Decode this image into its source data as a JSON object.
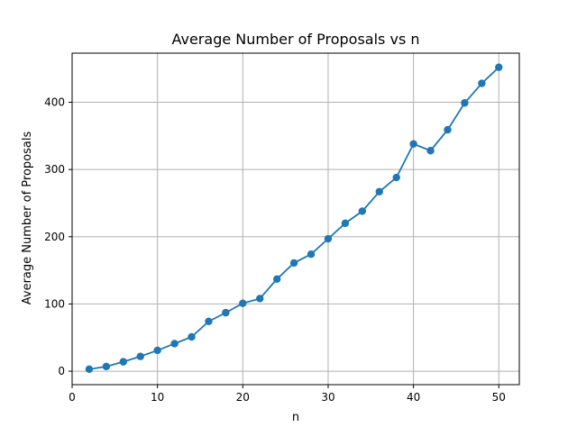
{
  "chart_data": {
    "type": "line",
    "title": "Average Number of Proposals vs n",
    "xlabel": "n",
    "ylabel": "Average Number of Proposals",
    "xlim": [
      0,
      52.4
    ],
    "ylim": [
      -20,
      473
    ],
    "x_ticks": [
      0,
      10,
      20,
      30,
      40,
      50
    ],
    "y_ticks": [
      0,
      100,
      200,
      300,
      400
    ],
    "grid": true,
    "series": [
      {
        "color": "#1f77b4",
        "marker": "circle",
        "x": [
          2,
          4,
          6,
          8,
          10,
          12,
          14,
          16,
          18,
          20,
          22,
          24,
          26,
          28,
          30,
          32,
          34,
          36,
          38,
          40,
          42,
          44,
          46,
          48,
          50
        ],
        "y": [
          3,
          7,
          14,
          22,
          31,
          41,
          51,
          74,
          87,
          101,
          108,
          137,
          161,
          174,
          197,
          220,
          238,
          267,
          288,
          338,
          328,
          359,
          399,
          428,
          452
        ]
      }
    ]
  }
}
